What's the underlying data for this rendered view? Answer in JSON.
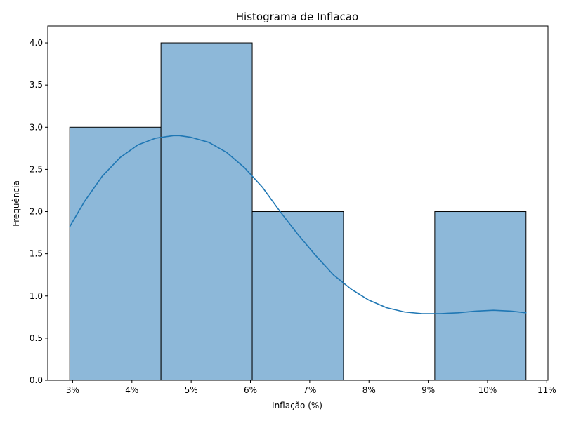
{
  "chart_data": {
    "type": "histogram",
    "title": "Histograma de Inflacao",
    "xlabel": "Inflação (%)",
    "ylabel": "Frequência",
    "xlim": [
      2.58,
      11.02
    ],
    "ylim": [
      0,
      4.2
    ],
    "x_ticks": [
      {
        "value": 3,
        "label": "3%"
      },
      {
        "value": 4,
        "label": "4%"
      },
      {
        "value": 5,
        "label": "5%"
      },
      {
        "value": 6,
        "label": "6%"
      },
      {
        "value": 7,
        "label": "7%"
      },
      {
        "value": 8,
        "label": "8%"
      },
      {
        "value": 9,
        "label": "9%"
      },
      {
        "value": 10,
        "label": "10%"
      },
      {
        "value": 11,
        "label": "11%"
      }
    ],
    "y_ticks": [
      {
        "value": 0.0,
        "label": "0.0"
      },
      {
        "value": 0.5,
        "label": "0.5"
      },
      {
        "value": 1.0,
        "label": "1.0"
      },
      {
        "value": 1.5,
        "label": "1.5"
      },
      {
        "value": 2.0,
        "label": "2.0"
      },
      {
        "value": 2.5,
        "label": "2.5"
      },
      {
        "value": 3.0,
        "label": "3.0"
      },
      {
        "value": 3.5,
        "label": "3.5"
      },
      {
        "value": 4.0,
        "label": "4.0"
      }
    ],
    "bins": [
      {
        "start": 2.95,
        "end": 4.49,
        "count": 3
      },
      {
        "start": 4.49,
        "end": 6.03,
        "count": 4
      },
      {
        "start": 6.03,
        "end": 7.57,
        "count": 2
      },
      {
        "start": 7.57,
        "end": 9.11,
        "count": 0
      },
      {
        "start": 9.11,
        "end": 10.65,
        "count": 2
      }
    ],
    "kde": {
      "x": [
        2.95,
        3.2,
        3.5,
        3.8,
        4.1,
        4.4,
        4.7,
        4.8,
        5.0,
        5.3,
        5.6,
        5.9,
        6.2,
        6.5,
        6.8,
        7.1,
        7.4,
        7.7,
        8.0,
        8.3,
        8.6,
        8.9,
        9.2,
        9.5,
        9.8,
        10.1,
        10.4,
        10.65
      ],
      "y": [
        1.82,
        2.12,
        2.42,
        2.64,
        2.79,
        2.87,
        2.9,
        2.9,
        2.88,
        2.82,
        2.7,
        2.52,
        2.29,
        2.0,
        1.73,
        1.48,
        1.25,
        1.08,
        0.95,
        0.86,
        0.81,
        0.79,
        0.79,
        0.8,
        0.82,
        0.83,
        0.82,
        0.8
      ]
    },
    "grid": false,
    "colors": {
      "bar_fill": "#8db8d9",
      "bar_edge": "#000000",
      "kde_line": "#1f77b4"
    }
  }
}
